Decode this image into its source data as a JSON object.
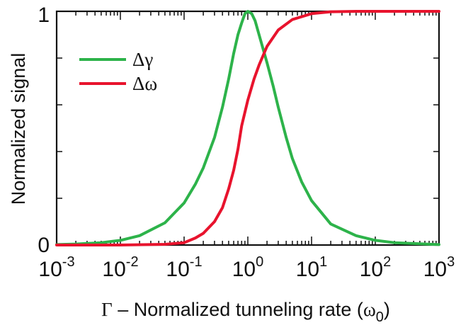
{
  "chart_data": {
    "type": "line",
    "title": "",
    "xlabel": {
      "prefix": "Γ",
      "text": " – Normalized tunneling rate (",
      "unit_base": "ω",
      "unit_sub": "0",
      "suffix": ")"
    },
    "ylabel": "Normalized signal",
    "xscale": "log",
    "xlim": [
      0.001,
      1000
    ],
    "ylim": [
      0,
      1
    ],
    "xticks": [
      {
        "base": "10",
        "exp": "-3"
      },
      {
        "base": "10",
        "exp": "-2"
      },
      {
        "base": "10",
        "exp": "-1"
      },
      {
        "base": "10",
        "exp": "0"
      },
      {
        "base": "10",
        "exp": "1"
      },
      {
        "base": "10",
        "exp": "2"
      },
      {
        "base": "10",
        "exp": "3"
      }
    ],
    "yticks": [
      "0",
      "1"
    ],
    "grid": false,
    "legend": "top-left",
    "series": [
      {
        "name": "Δγ",
        "color": "#2db34a",
        "points": [
          [
            0.001,
            0.002
          ],
          [
            0.002,
            0.004
          ],
          [
            0.005,
            0.01
          ],
          [
            0.01,
            0.02
          ],
          [
            0.02,
            0.04
          ],
          [
            0.05,
            0.095
          ],
          [
            0.1,
            0.18
          ],
          [
            0.15,
            0.26
          ],
          [
            0.2,
            0.33
          ],
          [
            0.3,
            0.46
          ],
          [
            0.4,
            0.59
          ],
          [
            0.5,
            0.71
          ],
          [
            0.6,
            0.82
          ],
          [
            0.7,
            0.9
          ],
          [
            0.8,
            0.95
          ],
          [
            0.9,
            0.99
          ],
          [
            1.0,
            1.0
          ],
          [
            1.15,
            0.99
          ],
          [
            1.3,
            0.96
          ],
          [
            1.5,
            0.9
          ],
          [
            2.0,
            0.78
          ],
          [
            2.5,
            0.68
          ],
          [
            3.0,
            0.59
          ],
          [
            4.0,
            0.46
          ],
          [
            5.0,
            0.37
          ],
          [
            7.0,
            0.27
          ],
          [
            10,
            0.19
          ],
          [
            20,
            0.09
          ],
          [
            50,
            0.04
          ],
          [
            100,
            0.02
          ],
          [
            200,
            0.01
          ],
          [
            1000,
            0.002
          ]
        ]
      },
      {
        "name": "Δω",
        "color": "#e8132d",
        "points": [
          [
            0.001,
            0.0
          ],
          [
            0.01,
            0.0
          ],
          [
            0.05,
            0.003
          ],
          [
            0.1,
            0.01
          ],
          [
            0.15,
            0.03
          ],
          [
            0.2,
            0.05
          ],
          [
            0.3,
            0.1
          ],
          [
            0.4,
            0.16
          ],
          [
            0.5,
            0.24
          ],
          [
            0.6,
            0.32
          ],
          [
            0.7,
            0.41
          ],
          [
            0.8,
            0.51
          ],
          [
            1.0,
            0.62
          ],
          [
            1.25,
            0.71
          ],
          [
            1.5,
            0.77
          ],
          [
            2.0,
            0.85
          ],
          [
            3.0,
            0.92
          ],
          [
            5.0,
            0.965
          ],
          [
            10,
            0.99
          ],
          [
            20,
            0.998
          ],
          [
            50,
            1.0
          ],
          [
            1000,
            1.0
          ]
        ]
      }
    ]
  }
}
